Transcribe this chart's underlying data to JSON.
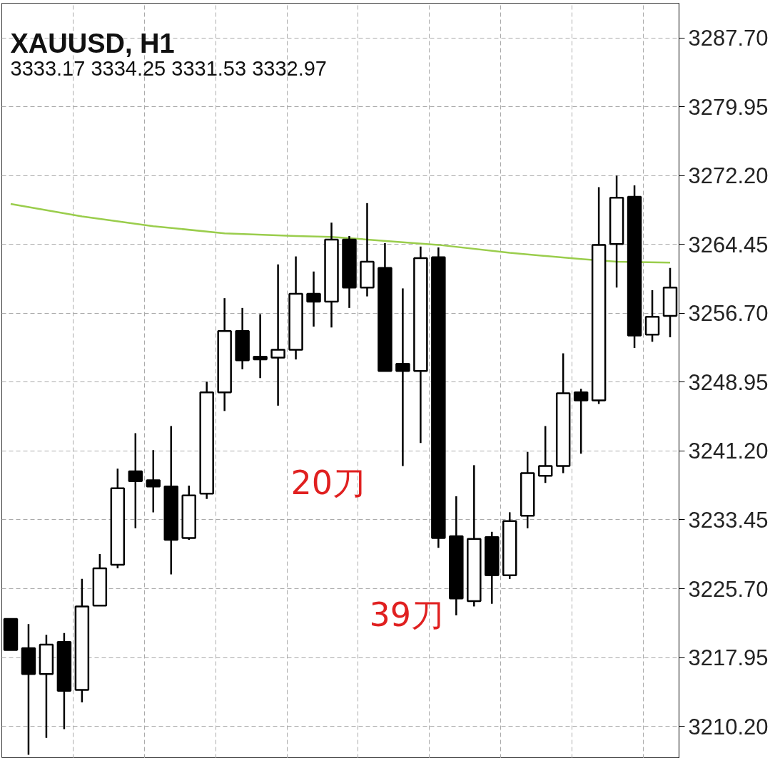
{
  "chart_data": {
    "type": "candlestick",
    "title": "XAUUSD, H1",
    "subtitle": "3333.17 3334.25 3331.53 3332.97",
    "categories": [
      null,
      null,
      null,
      null,
      null,
      null,
      null,
      null,
      null,
      null,
      null,
      null,
      null,
      null,
      null,
      null,
      null,
      null,
      null,
      null,
      null,
      null,
      null,
      null,
      null,
      null,
      null,
      null,
      null,
      null,
      null,
      null,
      null,
      null,
      null,
      null,
      null,
      null
    ],
    "ohlc": [
      [
        3222.3,
        3222.3,
        3218.8,
        3218.8
      ],
      [
        3219.0,
        3221.7,
        3207.0,
        3216.1
      ],
      [
        3216.1,
        3220.5,
        3208.9,
        3219.4
      ],
      [
        3219.7,
        3220.7,
        3209.9,
        3214.2
      ],
      [
        3214.3,
        3226.8,
        3212.9,
        3223.7
      ],
      [
        3223.8,
        3229.6,
        3223.8,
        3228.0
      ],
      [
        3228.4,
        3239.2,
        3228.0,
        3237.0
      ],
      [
        3238.9,
        3243.2,
        3232.5,
        3237.8
      ],
      [
        3237.9,
        3241.3,
        3234.3,
        3237.2
      ],
      [
        3237.2,
        3244.0,
        3227.3,
        3231.2
      ],
      [
        3231.4,
        3237.3,
        3231.2,
        3236.2
      ],
      [
        3236.4,
        3249.0,
        3235.8,
        3247.8
      ],
      [
        3247.8,
        3258.4,
        3245.7,
        3254.7
      ],
      [
        3254.7,
        3257.3,
        3250.4,
        3251.4
      ],
      [
        3251.8,
        3256.6,
        3249.4,
        3251.5
      ],
      [
        3251.7,
        3262.2,
        3246.3,
        3252.6
      ],
      [
        3252.6,
        3263.1,
        3251.5,
        3258.9
      ],
      [
        3258.9,
        3261.4,
        3255.2,
        3258.0
      ],
      [
        3258.0,
        3266.9,
        3255.1,
        3265.0
      ],
      [
        3265.0,
        3265.4,
        3257.3,
        3259.6
      ],
      [
        3259.6,
        3269.1,
        3258.6,
        3262.5
      ],
      [
        3261.8,
        3264.6,
        3250.2,
        3250.2
      ],
      [
        3251.0,
        3259.5,
        3239.5,
        3250.2
      ],
      [
        3250.2,
        3264.2,
        3242.1,
        3262.9
      ],
      [
        3263.0,
        3264.1,
        3230.3,
        3231.4
      ],
      [
        3231.6,
        3236.1,
        3222.7,
        3224.6
      ],
      [
        3224.3,
        3239.6,
        3223.7,
        3231.3
      ],
      [
        3231.5,
        3232.1,
        3224.0,
        3227.2
      ],
      [
        3227.2,
        3234.3,
        3226.8,
        3233.3
      ],
      [
        3233.9,
        3241.1,
        3232.5,
        3238.7
      ],
      [
        3238.4,
        3244.0,
        3237.6,
        3239.5
      ],
      [
        3239.5,
        3252.2,
        3238.7,
        3247.7
      ],
      [
        3247.8,
        3248.2,
        3240.9,
        3246.9
      ],
      [
        3246.9,
        3270.9,
        3246.5,
        3264.4
      ],
      [
        3264.5,
        3272.2,
        3259.6,
        3269.7
      ],
      [
        3269.8,
        3271.1,
        3252.8,
        3254.2
      ],
      [
        3254.3,
        3259.3,
        3253.5,
        3256.3
      ],
      [
        3256.4,
        3261.8,
        3254.0,
        3259.6
      ]
    ],
    "series": [
      {
        "type": "line",
        "color": "#9acd4c",
        "values": [
          3269.0,
          null,
          null,
          null,
          3267.6,
          null,
          null,
          null,
          3266.5,
          null,
          null,
          null,
          3265.7,
          null,
          null,
          null,
          3265.4,
          null,
          3265.3,
          null,
          3265.0,
          null,
          null,
          null,
          3264.4,
          null,
          null,
          null,
          3263.5,
          null,
          null,
          null,
          3262.8,
          null,
          3262.5,
          null,
          null,
          3262.4
        ]
      }
    ],
    "ylim": [
      3206.6,
      3291.6
    ],
    "yticks": [
      {
        "value": 3287.7,
        "label": "3287.70"
      },
      {
        "value": 3279.95,
        "label": "3279.95"
      },
      {
        "value": 3272.2,
        "label": "3272.20"
      },
      {
        "value": 3264.45,
        "label": "3264.45"
      },
      {
        "value": 3256.7,
        "label": "3256.70"
      },
      {
        "value": 3248.95,
        "label": "3248.95"
      },
      {
        "value": 3241.2,
        "label": "3241.20"
      },
      {
        "value": 3233.45,
        "label": "3233.45"
      },
      {
        "value": 3225.7,
        "label": "3225.70"
      },
      {
        "value": 3217.95,
        "label": "3217.95"
      },
      {
        "value": 3210.2,
        "label": "3210.20"
      }
    ],
    "grid": true,
    "line_style": "solid",
    "annotations": [
      "20刀",
      "39刀"
    ]
  }
}
